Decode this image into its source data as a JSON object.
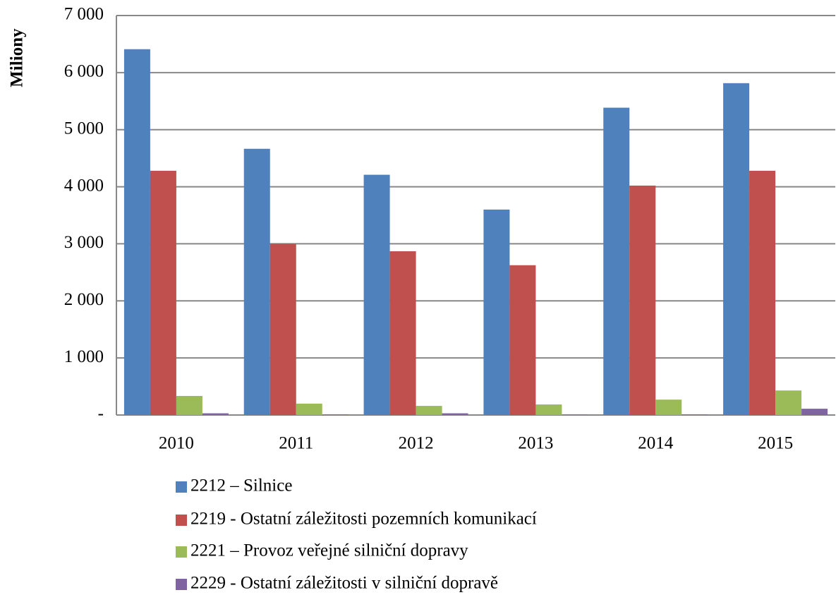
{
  "chart_data": {
    "type": "bar",
    "y_label": "Miliony",
    "categories": [
      "2010",
      "2011",
      "2012",
      "2013",
      "2014",
      "2015"
    ],
    "series": [
      {
        "name": "2212  – Silnice",
        "color": "#4f81bd",
        "values": [
          6410,
          4665,
          4210,
          3600,
          5385,
          5815
        ]
      },
      {
        "name": "2219 - Ostatní záležitosti pozemních komunikací",
        "color": "#c0504d",
        "values": [
          4280,
          3000,
          2870,
          2625,
          4020,
          4280
        ]
      },
      {
        "name": "2221  – Provoz veřejné silniční dopravy",
        "color": "#9bbb59",
        "values": [
          334,
          200,
          160,
          185,
          270,
          430
        ]
      },
      {
        "name": "2229 - Ostatní záležitosti v silniční dopravě",
        "color": "#8064a2",
        "values": [
          30,
          10,
          30,
          5,
          10,
          110
        ]
      }
    ],
    "ylim": [
      0,
      7000
    ],
    "yticks": [
      {
        "value": 0,
        "label": "-"
      },
      {
        "value": 1000,
        "label": "1 000"
      },
      {
        "value": 2000,
        "label": "2 000"
      },
      {
        "value": 3000,
        "label": "3 000"
      },
      {
        "value": 4000,
        "label": "4 000"
      },
      {
        "value": 5000,
        "label": "5 000"
      },
      {
        "value": 6000,
        "label": "6 000"
      },
      {
        "value": 7000,
        "label": "7 000"
      }
    ],
    "grid": true
  }
}
